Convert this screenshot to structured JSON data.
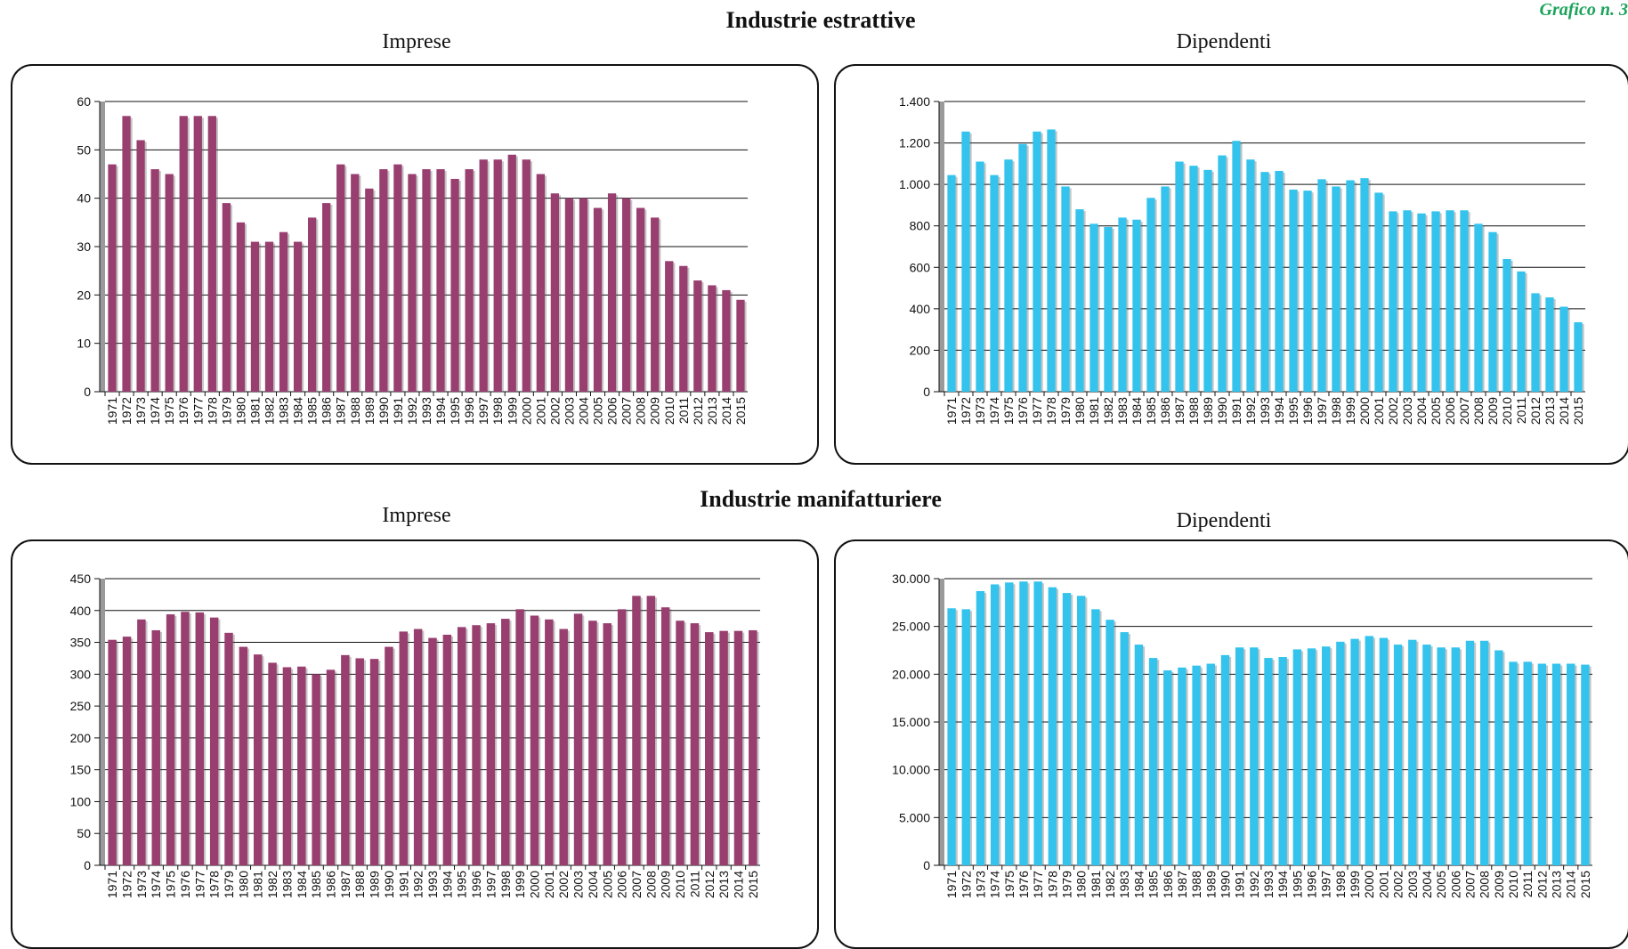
{
  "corner_label": "Grafico n. 3",
  "sections": [
    {
      "title": "Industrie estrattive"
    },
    {
      "title": "Industrie manifatturiere"
    }
  ],
  "colors": {
    "imprese": "#983f70",
    "dipendenti": "#33c3ec",
    "panel_border": "#111111"
  },
  "chart_data": [
    {
      "type": "bar",
      "title": "Imprese",
      "categories": [
        "1971",
        "1972",
        "1973",
        "1974",
        "1975",
        "1976",
        "1977",
        "1978",
        "1979",
        "1980",
        "1981",
        "1982",
        "1983",
        "1984",
        "1985",
        "1986",
        "1987",
        "1988",
        "1989",
        "1990",
        "1991",
        "1992",
        "1993",
        "1994",
        "1995",
        "1996",
        "1997",
        "1998",
        "1999",
        "2000",
        "2001",
        "2002",
        "2003",
        "2004",
        "2005",
        "2006",
        "2007",
        "2008",
        "2009",
        "2010",
        "2011",
        "2012",
        "2013",
        "2014",
        "2015"
      ],
      "values": [
        47,
        57,
        52,
        46,
        45,
        57,
        57,
        57,
        39,
        35,
        31,
        31,
        33,
        31,
        36,
        39,
        47,
        45,
        42,
        46,
        47,
        45,
        46,
        46,
        44,
        46,
        48,
        48,
        49,
        48,
        45,
        41,
        40,
        40,
        38,
        41,
        40,
        38,
        36,
        27,
        26,
        23,
        22,
        21,
        19
      ],
      "ylim": [
        0,
        60
      ],
      "yticks": [
        0,
        10,
        20,
        30,
        40,
        50,
        60
      ],
      "ytick_labels": [
        "0",
        "10",
        "20",
        "30",
        "40",
        "50",
        "60"
      ],
      "grid": true
    },
    {
      "type": "bar",
      "title": "Dipendenti",
      "categories": [
        "1971",
        "1972",
        "1973",
        "1974",
        "1975",
        "1976",
        "1977",
        "1978",
        "1979",
        "1980",
        "1981",
        "1982",
        "1983",
        "1984",
        "1985",
        "1986",
        "1987",
        "1988",
        "1989",
        "1990",
        "1991",
        "1992",
        "1993",
        "1994",
        "1995",
        "1996",
        "1997",
        "1998",
        "1999",
        "2000",
        "2001",
        "2002",
        "2003",
        "2004",
        "2005",
        "2006",
        "2007",
        "2008",
        "2009",
        "2010",
        "2011",
        "2012",
        "2013",
        "2014",
        "2015"
      ],
      "values": [
        1045,
        1255,
        1110,
        1045,
        1120,
        1195,
        1255,
        1265,
        990,
        880,
        810,
        795,
        840,
        830,
        935,
        990,
        1110,
        1090,
        1070,
        1140,
        1210,
        1120,
        1060,
        1065,
        975,
        970,
        1025,
        990,
        1020,
        1030,
        960,
        870,
        875,
        860,
        870,
        875,
        875,
        810,
        770,
        640,
        580,
        475,
        455,
        410,
        335
      ],
      "ylim": [
        0,
        1400
      ],
      "yticks": [
        0,
        200,
        400,
        600,
        800,
        1000,
        1200,
        1400
      ],
      "ytick_labels": [
        "0",
        "200",
        "400",
        "600",
        "800",
        "1.000",
        "1.200",
        "1.400"
      ],
      "grid": true
    },
    {
      "type": "bar",
      "title": "Imprese",
      "categories": [
        "1971",
        "1972",
        "1973",
        "1974",
        "1975",
        "1976",
        "1977",
        "1978",
        "1979",
        "1980",
        "1981",
        "1982",
        "1983",
        "1984",
        "1985",
        "1986",
        "1987",
        "1988",
        "1989",
        "1990",
        "1991",
        "1992",
        "1993",
        "1994",
        "1995",
        "1996",
        "1997",
        "1998",
        "1999",
        "2000",
        "2001",
        "2002",
        "2003",
        "2004",
        "2005",
        "2006",
        "2007",
        "2008",
        "2009",
        "2010",
        "2011",
        "2012",
        "2013",
        "2014",
        "2015"
      ],
      "values": [
        354,
        359,
        386,
        369,
        394,
        398,
        397,
        389,
        365,
        343,
        331,
        318,
        311,
        312,
        300,
        307,
        330,
        325,
        324,
        343,
        367,
        371,
        357,
        362,
        374,
        377,
        380,
        387,
        402,
        392,
        386,
        371,
        395,
        384,
        380,
        402,
        423,
        423,
        405,
        384,
        380,
        366,
        368,
        368,
        369
      ],
      "ylim": [
        0,
        450
      ],
      "yticks": [
        0,
        50,
        100,
        150,
        200,
        250,
        300,
        350,
        400,
        450
      ],
      "ytick_labels": [
        "0",
        "50",
        "100",
        "150",
        "200",
        "250",
        "300",
        "350",
        "400",
        "450"
      ],
      "grid": true
    },
    {
      "type": "bar",
      "title": "Dipendenti",
      "categories": [
        "1971",
        "1972",
        "1973",
        "1974",
        "1975",
        "1976",
        "1977",
        "1978",
        "1979",
        "1980",
        "1981",
        "1982",
        "1983",
        "1984",
        "1985",
        "1986",
        "1987",
        "1988",
        "1989",
        "1990",
        "1991",
        "1992",
        "1993",
        "1994",
        "1995",
        "1996",
        "1997",
        "1998",
        "1999",
        "2000",
        "2001",
        "2002",
        "2003",
        "2004",
        "2005",
        "2006",
        "2007",
        "2008",
        "2009",
        "2010",
        "2011",
        "2012",
        "2013",
        "2014",
        "2015"
      ],
      "values": [
        26900,
        26800,
        28700,
        29400,
        29600,
        29700,
        29700,
        29100,
        28500,
        28200,
        26800,
        25700,
        24400,
        23100,
        21700,
        20400,
        20700,
        20900,
        21100,
        22000,
        22800,
        22800,
        21700,
        21800,
        22600,
        22700,
        22900,
        23400,
        23700,
        24000,
        23800,
        23100,
        23600,
        23100,
        22800,
        22800,
        23500,
        23500,
        22500,
        21300,
        21300,
        21100,
        21100,
        21100,
        21000
      ],
      "ylim": [
        0,
        30000
      ],
      "yticks": [
        0,
        5000,
        10000,
        15000,
        20000,
        25000,
        30000
      ],
      "ytick_labels": [
        "0",
        "5.000",
        "10.000",
        "15.000",
        "20.000",
        "25.000",
        "30.000"
      ],
      "grid": true
    }
  ]
}
